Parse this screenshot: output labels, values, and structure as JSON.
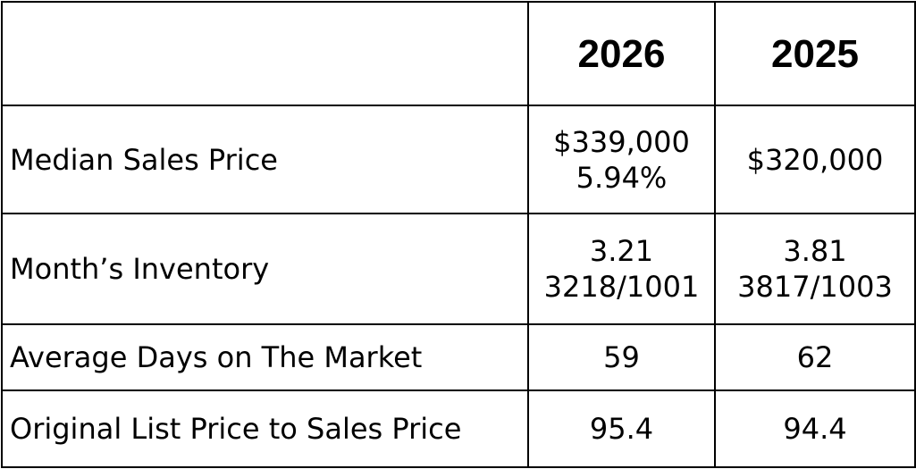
{
  "table": {
    "header": [
      "2026",
      "2025"
    ],
    "rows": [
      {
        "label": "Median Sales Price",
        "cells": [
          [
            "$339,000",
            "5.94%"
          ],
          [
            "$320,000"
          ]
        ]
      },
      {
        "label": "Month’s Inventory",
        "cells": [
          [
            "3.21",
            "3218/1001"
          ],
          [
            "3.81",
            "3817/1003"
          ]
        ]
      },
      {
        "label": "Average Days on The Market",
        "cells": [
          [
            "59"
          ],
          [
            "62"
          ]
        ]
      },
      {
        "label": "Original List Price to Sales Price",
        "cells": [
          [
            "95.4"
          ],
          [
            "94.4"
          ]
        ]
      }
    ]
  }
}
